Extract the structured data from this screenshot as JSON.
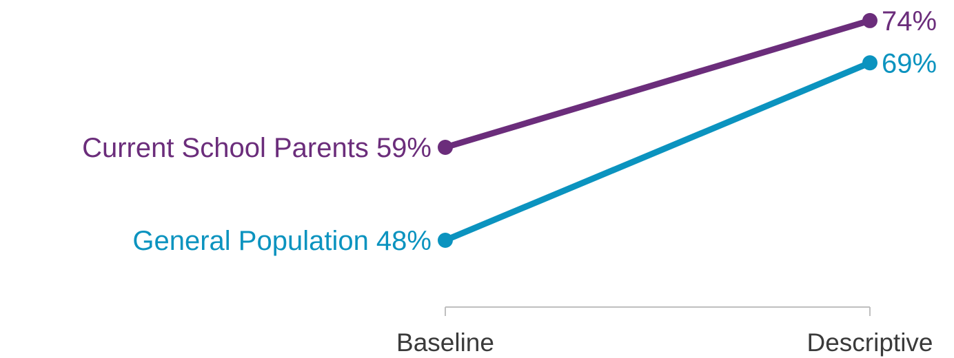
{
  "chart_data": {
    "type": "line",
    "categories": [
      "Baseline",
      "Descriptive"
    ],
    "series": [
      {
        "name": "Current School Parents",
        "values": [
          59,
          74
        ],
        "labels": [
          "59%",
          "74%"
        ],
        "color": "#6b2d7b"
      },
      {
        "name": "General Population",
        "values": [
          48,
          69
        ],
        "labels": [
          "48%",
          "69%"
        ],
        "color": "#0b93bf"
      }
    ],
    "ylim": [
      40,
      80
    ],
    "grid": false,
    "legend": "inline",
    "axis_color": "#bfbfbf"
  }
}
